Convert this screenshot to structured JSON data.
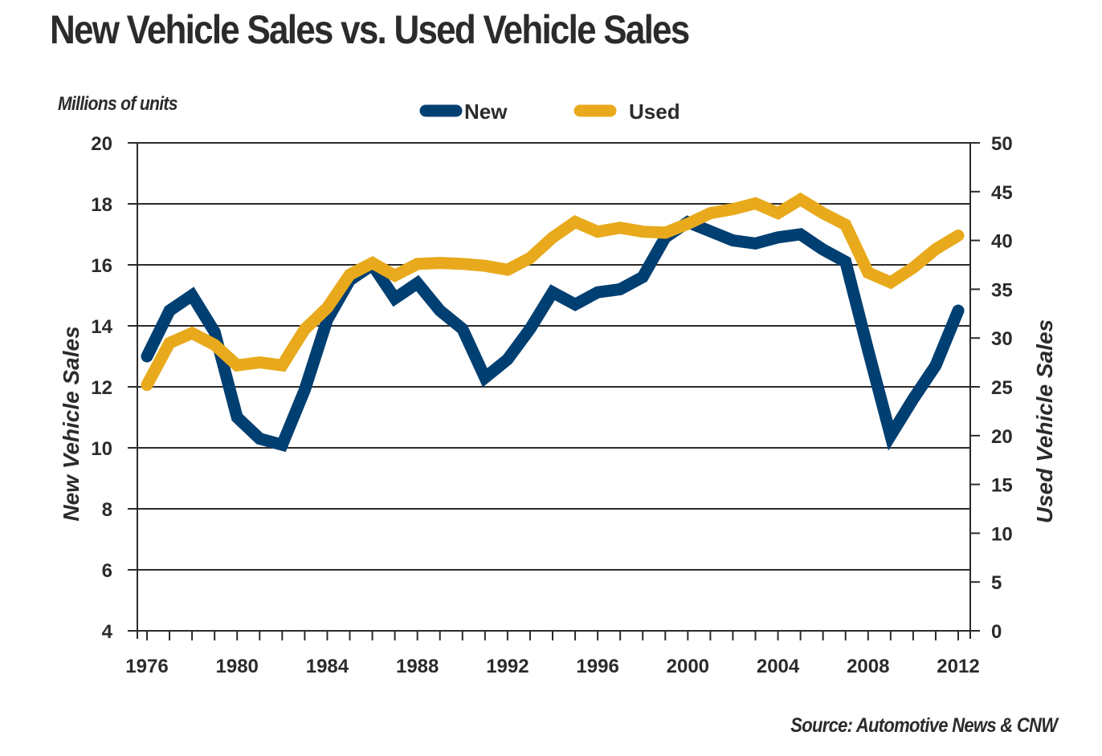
{
  "chart_data": {
    "type": "line",
    "title": "New Vehicle Sales vs. Used Vehicle Sales",
    "units_label": "Millions of units",
    "source": "Source: Automotive News & CNW",
    "xlabel": "",
    "ylabel_left": "New Vehicle Sales",
    "ylabel_right": "Used Vehicle Sales",
    "x": [
      1976,
      1977,
      1978,
      1979,
      1980,
      1981,
      1982,
      1983,
      1984,
      1985,
      1986,
      1987,
      1988,
      1989,
      1990,
      1991,
      1992,
      1993,
      1994,
      1995,
      1996,
      1997,
      1998,
      1999,
      2000,
      2001,
      2002,
      2003,
      2004,
      2005,
      2006,
      2007,
      2008,
      2009,
      2010,
      2011,
      2012
    ],
    "x_tick_labels": [
      "1976",
      "1980",
      "1984",
      "1988",
      "1992",
      "1996",
      "2000",
      "2004",
      "2008",
      "2012"
    ],
    "x_tick_values": [
      1976,
      1980,
      1984,
      1988,
      1992,
      1996,
      2000,
      2004,
      2008,
      2012
    ],
    "xlim": [
      1975.6,
      2012.5
    ],
    "ylim_left": [
      4,
      20
    ],
    "y_ticks_left": [
      4,
      6,
      8,
      10,
      12,
      14,
      16,
      18,
      20
    ],
    "ylim_right": [
      0,
      50
    ],
    "y_ticks_right": [
      0,
      5,
      10,
      15,
      20,
      25,
      30,
      35,
      40,
      45,
      50
    ],
    "grid": "horizontal (left axis ticks)",
    "legend_position": "top-center",
    "series": [
      {
        "name": "New",
        "axis": "left",
        "color": "#003f72",
        "values": [
          13.0,
          14.5,
          15.0,
          13.8,
          11.0,
          10.3,
          10.1,
          11.9,
          14.2,
          15.5,
          16.0,
          14.9,
          15.4,
          14.5,
          13.9,
          12.3,
          12.9,
          13.9,
          15.1,
          14.7,
          15.1,
          15.2,
          15.6,
          16.9,
          17.4,
          17.1,
          16.8,
          16.7,
          16.9,
          17.0,
          16.5,
          16.1,
          13.2,
          10.4,
          11.6,
          12.7,
          14.5
        ]
      },
      {
        "name": "Used",
        "axis": "right",
        "color": "#e8aa1c",
        "values": [
          25.2,
          29.5,
          30.5,
          29.3,
          27.2,
          27.5,
          27.2,
          30.9,
          33.1,
          36.5,
          37.7,
          36.4,
          37.6,
          37.7,
          37.6,
          37.4,
          37.0,
          38.2,
          40.3,
          41.9,
          40.9,
          41.3,
          40.9,
          40.8,
          41.7,
          42.8,
          43.2,
          43.8,
          42.8,
          44.2,
          42.8,
          41.6,
          36.7,
          35.7,
          37.2,
          39.1,
          40.5
        ]
      }
    ]
  }
}
